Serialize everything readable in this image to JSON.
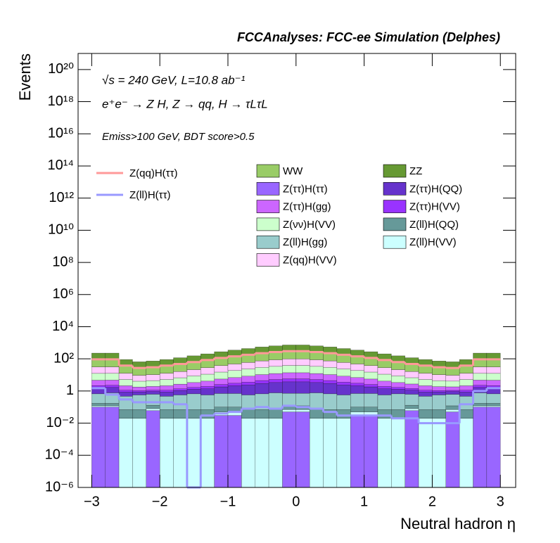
{
  "chart_data": {
    "type": "stacked_histogram",
    "title": "FCCAnalyses: FCC-ee Simulation (Delphes)",
    "annotations": [
      "√s = 240 GeV, L=10.8 ab⁻¹",
      "e⁺e⁻ → Z H, Z → qq, H → τLτL",
      "Emiss>100 GeV, BDT score>0.5"
    ],
    "x_label": "Neutral hadron η",
    "y_label": "Events",
    "log_y": true,
    "bins": [
      -3,
      -2.8,
      -2.6,
      -2.4,
      -2.2,
      -2,
      -1.8,
      -1.6,
      -1.4,
      -1.2,
      -1,
      -0.8,
      -0.6,
      -0.4,
      -0.2,
      0,
      0.2,
      0.4,
      0.6,
      0.8,
      1,
      1.2,
      1.4,
      1.6,
      1.8,
      2,
      2.2,
      2.4,
      2.6,
      2.8,
      3
    ],
    "xlim": [
      -3.2,
      3.225
    ],
    "ylim": [
      1e-06,
      1e+21
    ],
    "xticks": [
      {
        "value": -3,
        "label": "−3"
      },
      {
        "value": -2,
        "label": "−2"
      },
      {
        "value": -1,
        "label": "−1"
      },
      0,
      1,
      2,
      3
    ],
    "yticks": [
      {
        "value": 1e-06,
        "label": "10⁻⁶"
      },
      {
        "value": 0.0001,
        "label": "10⁻⁴"
      },
      {
        "value": 0.01,
        "label": "10⁻²"
      },
      1,
      {
        "value": 100,
        "label": "10²"
      },
      {
        "value": 10000,
        "label": "10⁴"
      },
      {
        "value": 1000000,
        "label": "10⁶"
      },
      {
        "value": 100000000,
        "label": "10⁸"
      },
      {
        "value": 10000000000,
        "label": "10¹⁰"
      },
      {
        "value": 1000000000000,
        "label": "10¹²"
      },
      {
        "value": 100000000000000,
        "label": "10¹⁴"
      },
      {
        "value": 10000000000000000,
        "label": "10¹⁶"
      },
      {
        "value": 1000000000000000000,
        "label": "10¹⁸"
      },
      {
        "value": 100000000000000000000,
        "label": "10²⁰"
      }
    ],
    "series": [
      {
        "name": "Z(ττ)H(ττ)",
        "color": "#9966ff",
        "values": [
          0.1,
          0.1,
          0,
          0,
          0.06,
          0,
          0,
          0,
          0,
          0.03,
          0.03,
          0,
          0,
          0,
          0.05,
          0.05,
          0,
          0,
          0,
          0.03,
          0.03,
          0,
          0,
          0.06,
          0,
          0,
          0.05,
          0,
          0.1,
          0.1
        ]
      },
      {
        "name": "Z(ll)H(VV)",
        "color": "#ccffff",
        "values": [
          0.02,
          0.02,
          0.02,
          0.02,
          0.02,
          0.02,
          0.02,
          0.02,
          0.02,
          0.02,
          0.02,
          0.02,
          0.02,
          0.02,
          0.02,
          0.02,
          0.02,
          0.02,
          0.02,
          0.02,
          0.02,
          0.02,
          0.02,
          0.02,
          0.02,
          0.02,
          0.02,
          0.02,
          0.02,
          0.02
        ]
      },
      {
        "name": "Z(ll)H(QQ)",
        "color": "#669999",
        "values": [
          0.05,
          0.05,
          0.05,
          0.05,
          0.05,
          0.05,
          0.05,
          0.05,
          0.05,
          0.05,
          0.05,
          0.05,
          0.05,
          0.05,
          0.05,
          0.05,
          0.05,
          0.05,
          0.05,
          0.05,
          0.05,
          0.05,
          0.05,
          0.05,
          0.05,
          0.05,
          0.05,
          0.05,
          0.05,
          0.05
        ]
      },
      {
        "name": "Z(ll)H(gg)",
        "color": "#99cccc",
        "values": [
          0.5,
          0.6,
          0.4,
          0.5,
          0.5,
          0.4,
          0.5,
          0.6,
          0.5,
          0.6,
          0.6,
          0.5,
          0.6,
          0.7,
          0.6,
          0.6,
          0.7,
          0.6,
          0.5,
          0.6,
          0.6,
          0.5,
          0.6,
          0.5,
          0.4,
          0.5,
          0.5,
          0.4,
          0.6,
          0.5
        ]
      },
      {
        "name": "Z(ττ)H(QQ)",
        "color": "#6633cc",
        "values": [
          0.9,
          0.9,
          0.4,
          0.3,
          0.3,
          0.4,
          0.5,
          0.6,
          0.8,
          1.1,
          1.4,
          1.8,
          2.3,
          2.6,
          3,
          3,
          2.6,
          2.3,
          1.8,
          1.4,
          1.1,
          0.8,
          0.6,
          0.5,
          0.4,
          0.3,
          0.3,
          0.4,
          0.9,
          0.9
        ]
      },
      {
        "name": "Z(ττ)H(VV)",
        "color": "#9933ff",
        "values": [
          0.6,
          0.6,
          0.25,
          0.18,
          0.2,
          0.25,
          0.3,
          0.4,
          0.55,
          0.75,
          0.95,
          1.2,
          1.5,
          1.8,
          2,
          2,
          1.8,
          1.5,
          1.2,
          0.95,
          0.75,
          0.55,
          0.4,
          0.3,
          0.25,
          0.2,
          0.18,
          0.25,
          0.6,
          0.6
        ]
      },
      {
        "name": "Z(ττ)H(gg)",
        "color": "#cc66ff",
        "values": [
          2.5,
          2.5,
          1,
          0.72,
          0.8,
          1,
          1.3,
          1.7,
          2.2,
          3,
          3.8,
          4.8,
          6,
          7,
          8,
          8,
          7,
          6,
          4.8,
          3.8,
          3,
          2.2,
          1.7,
          1.3,
          1,
          0.8,
          0.72,
          1,
          2.5,
          2.5
        ]
      },
      {
        "name": "Z(νν)H(VV)",
        "color": "#ccffcc",
        "values": [
          7.8,
          7.8,
          3.1,
          2.3,
          2.5,
          3.1,
          4,
          5.3,
          7,
          9.5,
          12,
          15,
          19,
          22,
          25,
          25,
          22,
          19,
          15,
          12,
          9.5,
          7,
          5.3,
          4,
          3.1,
          2.5,
          2.3,
          3.1,
          7.8,
          7.8
        ]
      },
      {
        "name": "Z(qq)H(VV)",
        "color": "#ffccff",
        "values": [
          19,
          19,
          7.5,
          5.4,
          6,
          7.5,
          9.6,
          12.6,
          17,
          23,
          29,
          36,
          45,
          53,
          60,
          60,
          53,
          45,
          36,
          29,
          23,
          17,
          12.6,
          9.6,
          7.5,
          6,
          5.4,
          7.5,
          19,
          19
        ]
      },
      {
        "name": "WW",
        "color": "#99cc66",
        "values": [
          56,
          56,
          22,
          16,
          18,
          22,
          29,
          38,
          50,
          68,
          86,
          108,
          135,
          158,
          180,
          180,
          158,
          135,
          108,
          86,
          68,
          50,
          38,
          29,
          22,
          18,
          16,
          22,
          56,
          56
        ]
      },
      {
        "name": "ZZ",
        "color": "#669933",
        "values": [
          140,
          140,
          56,
          40,
          45,
          56,
          72,
          95,
          126,
          171,
          216,
          270,
          338,
          396,
          450,
          450,
          396,
          338,
          270,
          216,
          171,
          126,
          95,
          72,
          56,
          45,
          40,
          56,
          140,
          140
        ]
      }
    ],
    "line_series": [
      {
        "name": "Z(qq)H(ττ)",
        "color": "#ff9999",
        "values": [
          93,
          93,
          38,
          27,
          30,
          38,
          48,
          63,
          84,
          114,
          144,
          180,
          225,
          264,
          300,
          300,
          264,
          225,
          180,
          144,
          114,
          84,
          63,
          48,
          38,
          30,
          27,
          38,
          93,
          93
        ]
      },
      {
        "name": "Z(ll)H(ττ)",
        "color": "#9999ff",
        "values": [
          1.5,
          0.6,
          0.3,
          0.2,
          0.2,
          0.2,
          0.15,
          0,
          0.03,
          0.04,
          0.05,
          0.08,
          0.1,
          0.08,
          0.12,
          0.1,
          0.08,
          0.05,
          0.03,
          0.03,
          0.03,
          0.03,
          0.02,
          0.02,
          0.01,
          0.01,
          0.01,
          0.15,
          1,
          1.5
        ]
      }
    ]
  }
}
